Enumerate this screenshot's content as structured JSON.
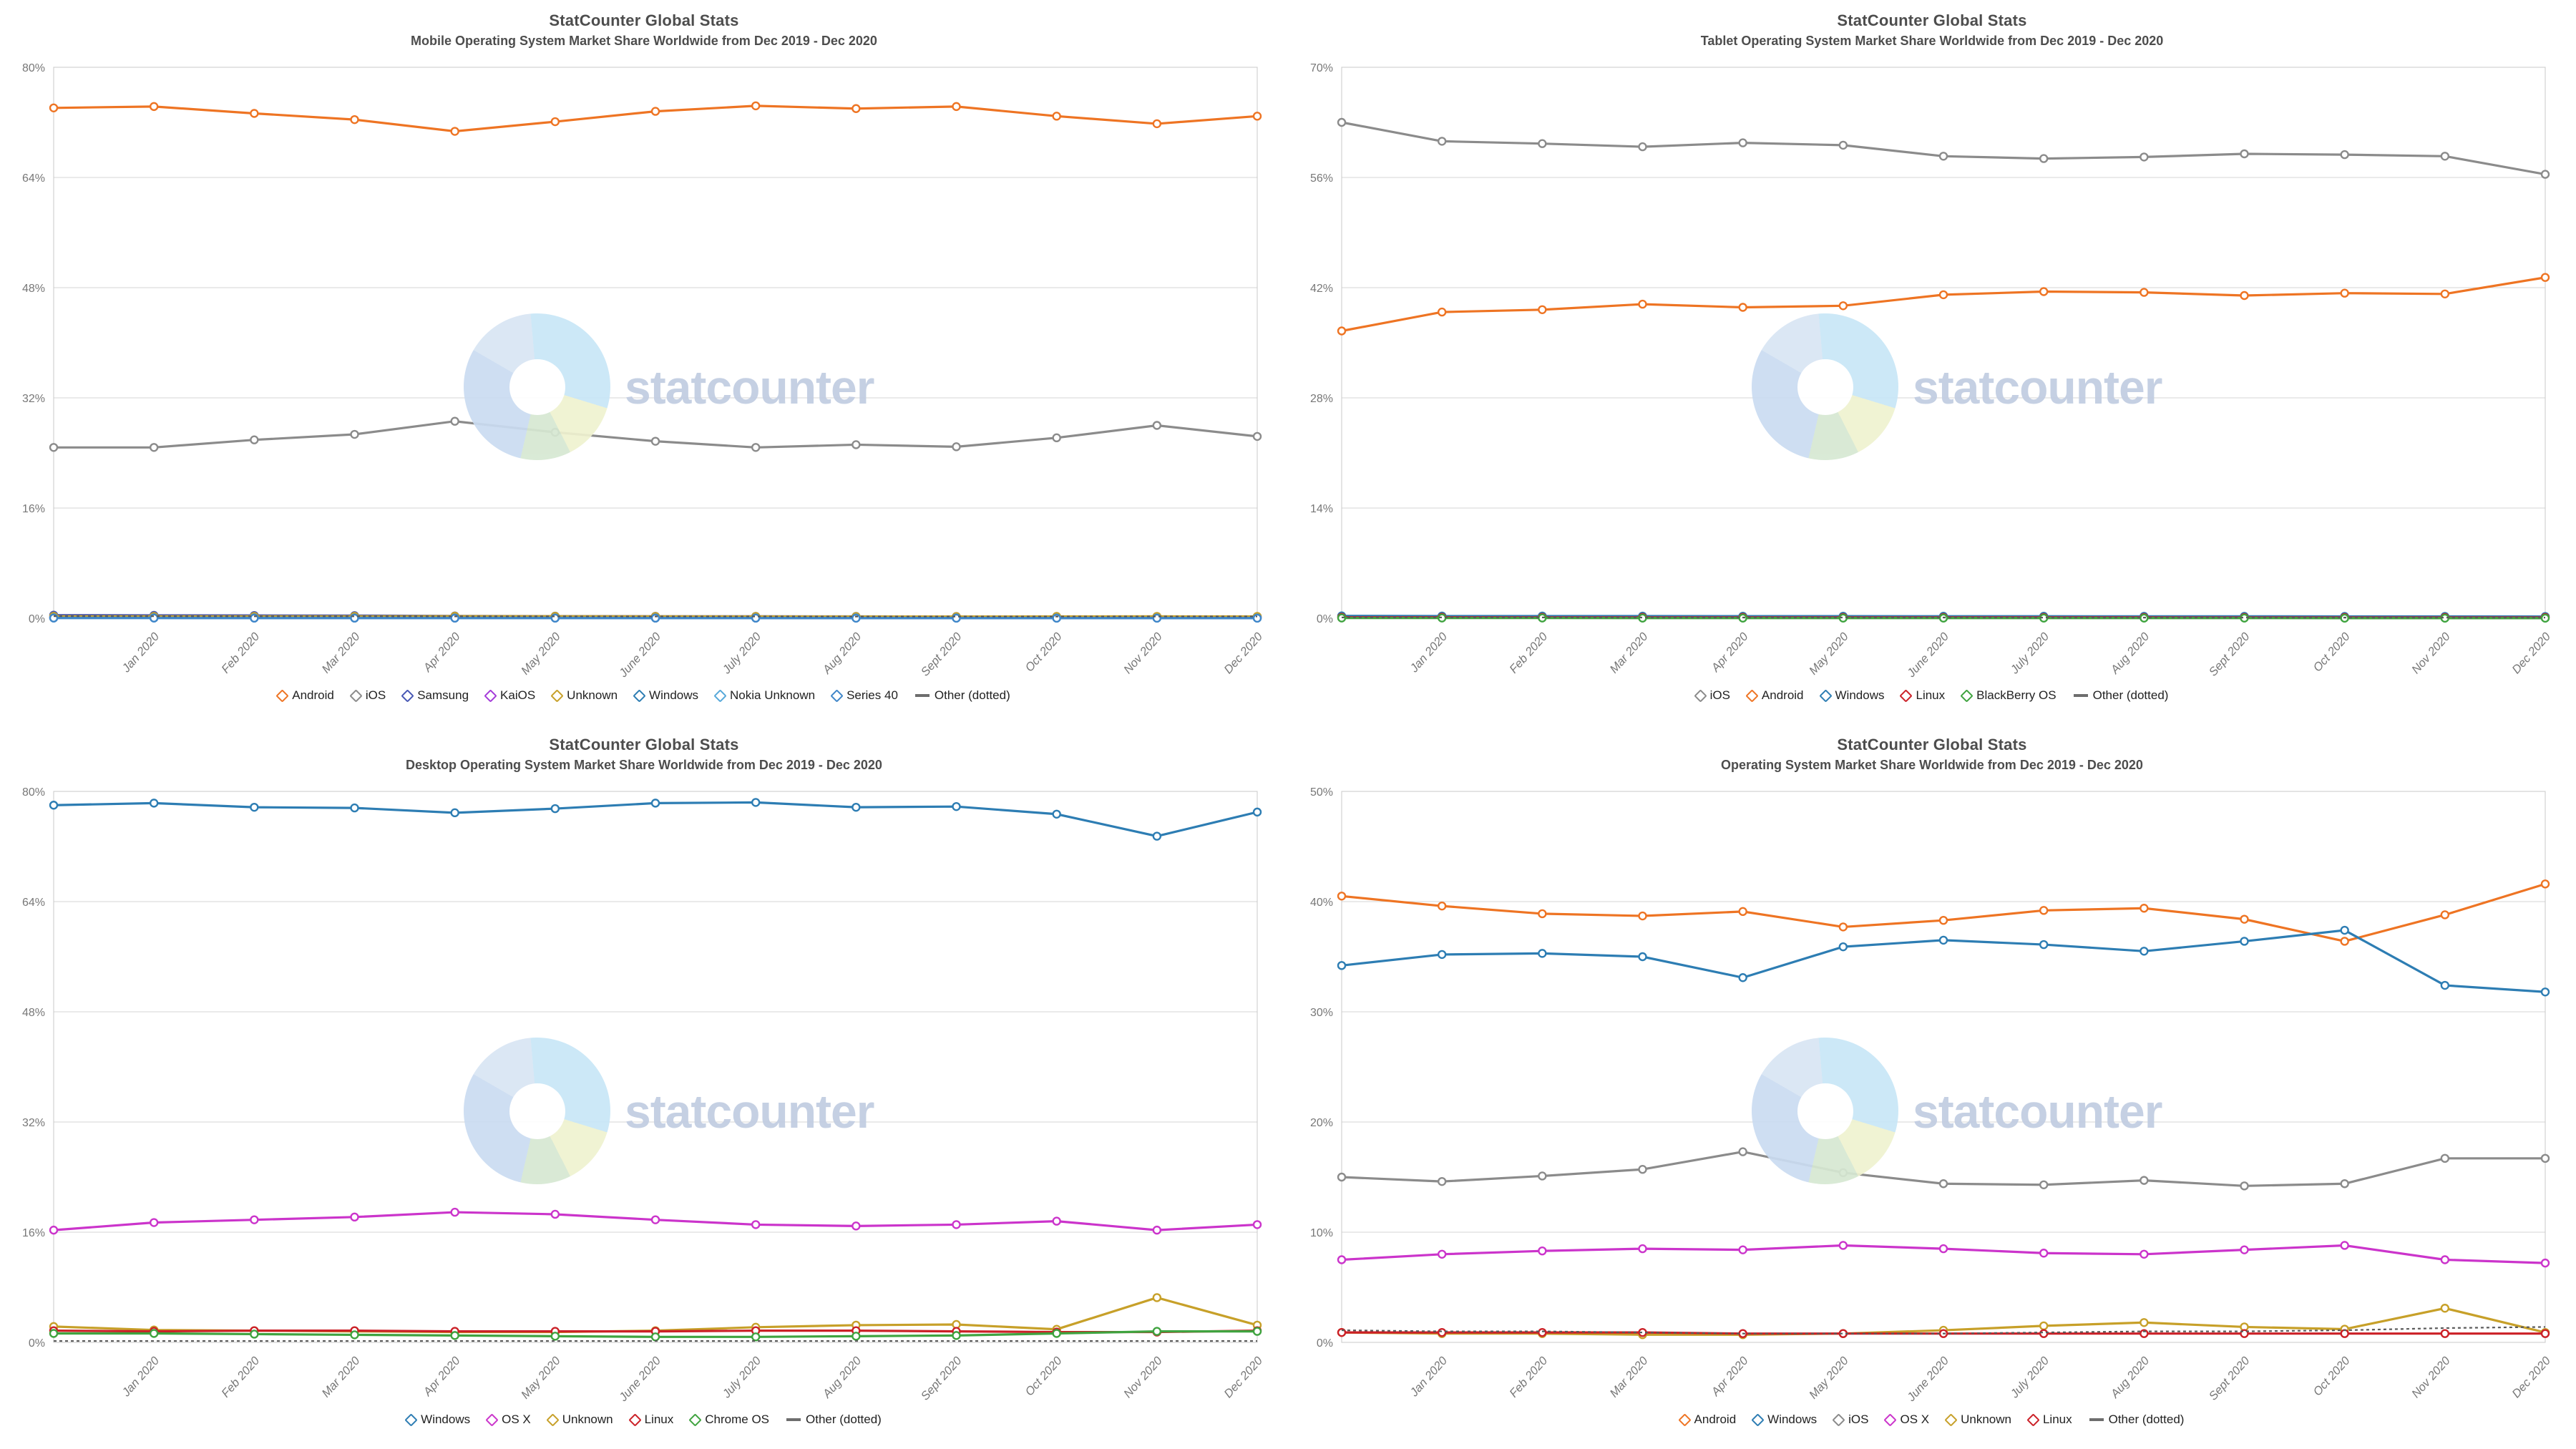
{
  "watermark_text": "statcounter",
  "chart_data": [
    {
      "type": "line",
      "title": "StatCounter Global Stats",
      "subtitle": "Mobile Operating System Market Share Worldwide from Dec 2019 - Dec 2020",
      "categories": [
        "",
        "Jan 2020",
        "Feb 2020",
        "Mar 2020",
        "Apr 2020",
        "May 2020",
        "June 2020",
        "July 2020",
        "Aug 2020",
        "Sept 2020",
        "Oct 2020",
        "Nov 2020",
        "Dec 2020"
      ],
      "ylim": [
        0,
        80
      ],
      "yticks": [
        0,
        16,
        32,
        48,
        64,
        80
      ],
      "grid": true,
      "legend_position": "bottom",
      "series": [
        {
          "name": "Android",
          "color": "#ee7423",
          "values": [
            74.1,
            74.3,
            73.3,
            72.4,
            70.7,
            72.1,
            73.6,
            74.4,
            74.0,
            74.3,
            72.9,
            71.8,
            72.9
          ]
        },
        {
          "name": "iOS",
          "color": "#8b8b8b",
          "values": [
            24.8,
            24.8,
            25.9,
            26.7,
            28.6,
            27.0,
            25.7,
            24.8,
            25.2,
            24.9,
            26.2,
            28.0,
            26.4
          ]
        },
        {
          "name": "Samsung",
          "color": "#4757b4",
          "values": [
            0.45,
            0.42,
            0.4,
            0.38,
            0.33,
            0.3,
            0.28,
            0.27,
            0.26,
            0.25,
            0.25,
            0.24,
            0.24
          ]
        },
        {
          "name": "KaiOS",
          "color": "#a43bd9",
          "values": [
            0.17,
            0.17,
            0.16,
            0.16,
            0.15,
            0.15,
            0.14,
            0.14,
            0.14,
            0.13,
            0.13,
            0.13,
            0.12
          ]
        },
        {
          "name": "Unknown",
          "color": "#c7a029",
          "values": [
            0.28,
            0.27,
            0.27,
            0.28,
            0.3,
            0.29,
            0.27,
            0.26,
            0.25,
            0.25,
            0.26,
            0.27,
            0.26
          ]
        },
        {
          "name": "Windows",
          "color": "#2d7db3",
          "values": [
            0.06,
            0.06,
            0.05,
            0.05,
            0.05,
            0.05,
            0.04,
            0.04,
            0.04,
            0.04,
            0.03,
            0.03,
            0.03
          ]
        },
        {
          "name": "Nokia Unknown",
          "color": "#56a8da",
          "values": [
            0.04,
            0.04,
            0.04,
            0.03,
            0.03,
            0.03,
            0.03,
            0.03,
            0.03,
            0.02,
            0.02,
            0.02,
            0.02
          ]
        },
        {
          "name": "Series 40",
          "color": "#3f86c9",
          "values": [
            0.03,
            0.03,
            0.02,
            0.02,
            0.02,
            0.02,
            0.02,
            0.02,
            0.01,
            0.01,
            0.01,
            0.01,
            0.01
          ]
        },
        {
          "name": "Other (dotted)",
          "color": "#5a5a5a",
          "style": "dotted",
          "values": [
            0.3,
            0.29,
            0.28,
            0.28,
            0.27,
            0.27,
            0.26,
            0.26,
            0.25,
            0.25,
            0.25,
            0.26,
            0.26
          ]
        }
      ]
    },
    {
      "type": "line",
      "title": "StatCounter Global Stats",
      "subtitle": "Tablet Operating System Market Share Worldwide from Dec 2019 - Dec 2020",
      "categories": [
        "",
        "Jan 2020",
        "Feb 2020",
        "Mar 2020",
        "Apr 2020",
        "May 2020",
        "June 2020",
        "July 2020",
        "Aug 2020",
        "Sept 2020",
        "Oct 2020",
        "Nov 2020",
        "Dec 2020"
      ],
      "ylim": [
        0,
        70
      ],
      "yticks": [
        0,
        14,
        28,
        42,
        56,
        70
      ],
      "grid": true,
      "legend_position": "bottom",
      "series": [
        {
          "name": "iOS",
          "color": "#8b8b8b",
          "values": [
            63.0,
            60.6,
            60.3,
            59.9,
            60.4,
            60.1,
            58.7,
            58.4,
            58.6,
            59.0,
            58.9,
            58.7,
            56.4
          ]
        },
        {
          "name": "Android",
          "color": "#ee7423",
          "values": [
            36.5,
            38.9,
            39.2,
            39.9,
            39.5,
            39.7,
            41.1,
            41.5,
            41.4,
            41.0,
            41.3,
            41.2,
            43.3
          ]
        },
        {
          "name": "Windows",
          "color": "#2d7db3",
          "values": [
            0.3,
            0.28,
            0.28,
            0.27,
            0.26,
            0.26,
            0.25,
            0.25,
            0.24,
            0.24,
            0.23,
            0.23,
            0.22
          ]
        },
        {
          "name": "Linux",
          "color": "#cb2027",
          "values": [
            0.12,
            0.12,
            0.11,
            0.11,
            0.11,
            0.1,
            0.1,
            0.1,
            0.1,
            0.09,
            0.09,
            0.09,
            0.09
          ]
        },
        {
          "name": "BlackBerry OS",
          "color": "#3fa33f",
          "values": [
            0.03,
            0.03,
            0.03,
            0.02,
            0.02,
            0.02,
            0.02,
            0.02,
            0.02,
            0.02,
            0.01,
            0.01,
            0.01
          ]
        },
        {
          "name": "Other (dotted)",
          "color": "#5a5a5a",
          "style": "dotted",
          "values": [
            0.1,
            0.1,
            0.1,
            0.09,
            0.09,
            0.09,
            0.09,
            0.08,
            0.08,
            0.08,
            0.08,
            0.08,
            0.08
          ]
        }
      ]
    },
    {
      "type": "line",
      "title": "StatCounter Global Stats",
      "subtitle": "Desktop Operating System Market Share Worldwide from Dec 2019 - Dec 2020",
      "categories": [
        "",
        "Jan 2020",
        "Feb 2020",
        "Mar 2020",
        "Apr 2020",
        "May 2020",
        "June 2020",
        "July 2020",
        "Aug 2020",
        "Sept 2020",
        "Oct 2020",
        "Nov 2020",
        "Dec 2020"
      ],
      "ylim": [
        0,
        80
      ],
      "yticks": [
        0,
        16,
        32,
        48,
        64,
        80
      ],
      "grid": true,
      "legend_position": "bottom",
      "series": [
        {
          "name": "Windows",
          "color": "#2d7db3",
          "values": [
            78.0,
            78.3,
            77.7,
            77.6,
            76.9,
            77.5,
            78.3,
            78.4,
            77.7,
            77.8,
            76.7,
            73.5,
            77.0
          ]
        },
        {
          "name": "OS X",
          "color": "#cb34cb",
          "values": [
            16.3,
            17.4,
            17.8,
            18.2,
            18.9,
            18.6,
            17.8,
            17.1,
            16.9,
            17.1,
            17.6,
            16.3,
            17.1
          ]
        },
        {
          "name": "Unknown",
          "color": "#c7a029",
          "values": [
            2.3,
            1.8,
            1.7,
            1.6,
            1.5,
            1.5,
            1.7,
            2.2,
            2.5,
            2.6,
            1.9,
            6.5,
            2.5
          ]
        },
        {
          "name": "Linux",
          "color": "#cb2027",
          "values": [
            1.7,
            1.6,
            1.7,
            1.7,
            1.6,
            1.6,
            1.6,
            1.7,
            1.7,
            1.6,
            1.5,
            1.5,
            1.7
          ]
        },
        {
          "name": "Chrome OS",
          "color": "#3fa33f",
          "values": [
            1.3,
            1.3,
            1.2,
            1.1,
            1.0,
            0.9,
            0.8,
            0.8,
            0.9,
            1.0,
            1.3,
            1.6,
            1.6
          ]
        },
        {
          "name": "Other (dotted)",
          "color": "#5a5a5a",
          "style": "dotted",
          "values": [
            0.2,
            0.2,
            0.2,
            0.2,
            0.2,
            0.2,
            0.2,
            0.2,
            0.2,
            0.2,
            0.2,
            0.2,
            0.2
          ]
        }
      ]
    },
    {
      "type": "line",
      "title": "StatCounter Global Stats",
      "subtitle": "Operating System Market Share Worldwide from Dec 2019 - Dec 2020",
      "categories": [
        "",
        "Jan 2020",
        "Feb 2020",
        "Mar 2020",
        "Apr 2020",
        "May 2020",
        "June 2020",
        "July 2020",
        "Aug 2020",
        "Sept 2020",
        "Oct 2020",
        "Nov 2020",
        "Dec 2020"
      ],
      "ylim": [
        0,
        50
      ],
      "yticks": [
        0,
        10,
        20,
        30,
        40,
        50
      ],
      "grid": true,
      "legend_position": "bottom",
      "series": [
        {
          "name": "Android",
          "color": "#ee7423",
          "values": [
            40.5,
            39.6,
            38.9,
            38.7,
            39.1,
            37.7,
            38.3,
            39.2,
            39.4,
            38.4,
            36.4,
            38.8,
            41.6
          ]
        },
        {
          "name": "Windows",
          "color": "#2d7db3",
          "values": [
            34.2,
            35.2,
            35.3,
            35.0,
            33.1,
            35.9,
            36.5,
            36.1,
            35.5,
            36.4,
            37.4,
            32.4,
            31.8
          ]
        },
        {
          "name": "iOS",
          "color": "#8b8b8b",
          "values": [
            15.0,
            14.6,
            15.1,
            15.7,
            17.3,
            15.4,
            14.4,
            14.3,
            14.7,
            14.2,
            14.4,
            16.7,
            16.7
          ]
        },
        {
          "name": "OS X",
          "color": "#cb34cb",
          "values": [
            7.5,
            8.0,
            8.3,
            8.5,
            8.4,
            8.8,
            8.5,
            8.1,
            8.0,
            8.4,
            8.8,
            7.5,
            7.2
          ]
        },
        {
          "name": "Unknown",
          "color": "#c7a029",
          "values": [
            0.9,
            0.8,
            0.8,
            0.7,
            0.7,
            0.8,
            1.1,
            1.5,
            1.8,
            1.4,
            1.2,
            3.1,
            0.9
          ]
        },
        {
          "name": "Linux",
          "color": "#cb2027",
          "values": [
            0.9,
            0.9,
            0.9,
            0.9,
            0.8,
            0.8,
            0.8,
            0.8,
            0.8,
            0.8,
            0.8,
            0.8,
            0.8
          ]
        },
        {
          "name": "Other (dotted)",
          "color": "#5a5a5a",
          "style": "dotted",
          "values": [
            1.1,
            1.0,
            1.0,
            0.9,
            0.8,
            0.8,
            0.8,
            0.9,
            1.0,
            1.0,
            1.1,
            1.3,
            1.4
          ]
        }
      ]
    }
  ]
}
